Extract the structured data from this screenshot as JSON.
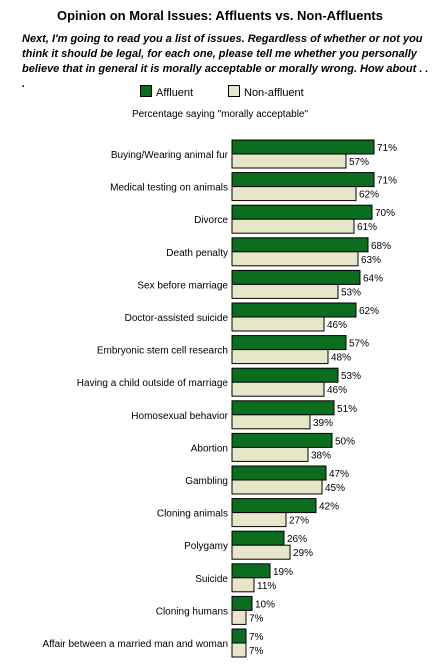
{
  "title": "Opinion on Moral Issues: Affluents vs. Non-Affluents",
  "question": "Next, I'm going to read you a list of issues. Regardless of whether or not you think it should be legal, for each one, please tell me whether you personally believe that in general it is morally acceptable or morally wrong. How about . . .",
  "colors": {
    "affluent": "#0a6e1e",
    "non_affluent": "#e8e6c8",
    "outline": "#000000"
  },
  "chart_data": {
    "type": "bar",
    "orientation": "horizontal",
    "title": "Opinion on Moral Issues: Affluents vs. Non-Affluents",
    "subtitle": "Percentage saying \"morally acceptable\"",
    "value_suffix": "%",
    "xlim": [
      0,
      100
    ],
    "grid": false,
    "legend_position": "top",
    "categories": [
      "Buying/Wearing animal fur",
      "Medical testing on animals",
      "Divorce",
      "Death penalty",
      "Sex before marriage",
      "Doctor-assisted suicide",
      "Embryonic stem cell research",
      "Having a child outside of marriage",
      "Homosexual behavior",
      "Abortion",
      "Gambling",
      "Cloning animals",
      "Polygamy",
      "Suicide",
      "Cloning humans",
      "Affair between a married man and woman"
    ],
    "series": [
      {
        "name": "Affluent",
        "values": [
          71,
          71,
          70,
          68,
          64,
          62,
          57,
          53,
          51,
          50,
          47,
          42,
          26,
          19,
          10,
          7
        ]
      },
      {
        "name": "Non-affluent",
        "values": [
          57,
          62,
          61,
          63,
          53,
          46,
          48,
          46,
          39,
          38,
          45,
          27,
          29,
          11,
          7,
          7
        ]
      }
    ]
  }
}
